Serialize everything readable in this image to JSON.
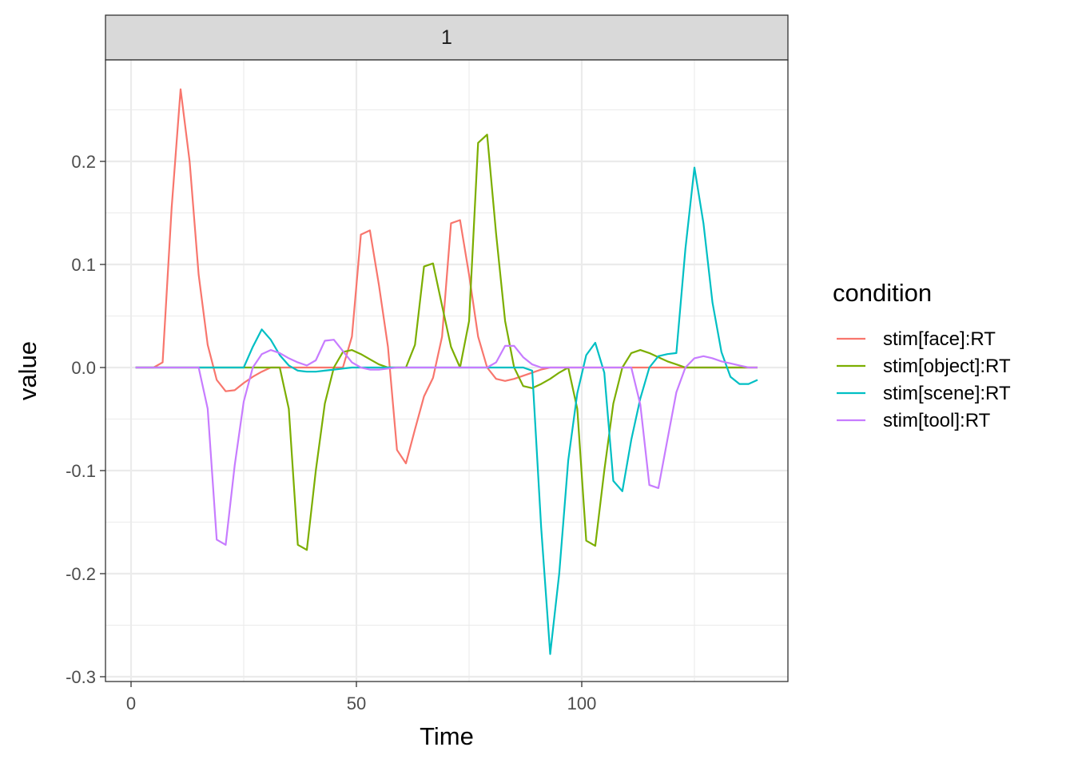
{
  "chart_data": {
    "type": "line",
    "facet_label": "1",
    "xlabel": "Time",
    "ylabel": "value",
    "xlim": [
      -5,
      145
    ],
    "ylim": [
      -0.3,
      0.3
    ],
    "x_ticks": [
      0,
      50,
      100
    ],
    "x_tick_labels": [
      "0",
      "50",
      "100"
    ],
    "y_ticks": [
      -0.3,
      -0.2,
      -0.1,
      0.0,
      0.1,
      0.2
    ],
    "y_tick_labels": [
      "-0.3",
      "-0.2",
      "-0.1",
      "0.0",
      "0.1",
      "0.2"
    ],
    "grid": true,
    "legend": {
      "title": "condition",
      "position": "right"
    },
    "x": [
      1,
      3,
      5,
      7,
      9,
      11,
      13,
      15,
      17,
      19,
      21,
      23,
      25,
      27,
      29,
      31,
      33,
      35,
      37,
      39,
      41,
      43,
      45,
      47,
      49,
      51,
      53,
      55,
      57,
      59,
      61,
      63,
      65,
      67,
      69,
      71,
      73,
      75,
      77,
      79,
      81,
      83,
      85,
      87,
      89,
      91,
      93,
      95,
      97,
      99,
      101,
      103,
      105,
      107,
      109,
      111,
      113,
      115,
      117,
      119,
      121,
      123,
      125,
      127,
      129,
      131,
      133,
      135,
      137,
      139
    ],
    "series": [
      {
        "name": "stim[face]:RT",
        "color": "#F8766D",
        "values": [
          0,
          0,
          0,
          0.005,
          0.155,
          0.27,
          0.2,
          0.09,
          0.022,
          -0.012,
          -0.023,
          -0.022,
          -0.015,
          -0.009,
          -0.004,
          0,
          0,
          0,
          0,
          0,
          0,
          0,
          0,
          0,
          0.03,
          0.129,
          0.133,
          0.08,
          0.02,
          -0.08,
          -0.093,
          -0.06,
          -0.028,
          -0.01,
          0.03,
          0.14,
          0.143,
          0.09,
          0.03,
          0,
          -0.011,
          -0.013,
          -0.011,
          -0.008,
          -0.005,
          -0.002,
          0,
          0,
          0,
          0,
          0,
          0,
          0,
          0,
          0,
          0,
          0,
          0,
          0,
          0,
          0,
          0,
          0,
          0,
          0,
          0,
          0,
          0,
          0,
          0
        ]
      },
      {
        "name": "stim[object]:RT",
        "color": "#7CAE00",
        "values": [
          0,
          0,
          0,
          0,
          0,
          0,
          0,
          0,
          0,
          0,
          0,
          0,
          0,
          0,
          0,
          0,
          0,
          -0.04,
          -0.172,
          -0.177,
          -0.1,
          -0.035,
          0,
          0.015,
          0.017,
          0.013,
          0.008,
          0.003,
          0,
          0,
          0,
          0.022,
          0.098,
          0.101,
          0.06,
          0.02,
          0,
          0.045,
          0.218,
          0.226,
          0.13,
          0.045,
          0,
          -0.018,
          -0.02,
          -0.016,
          -0.011,
          -0.005,
          0,
          -0.04,
          -0.168,
          -0.173,
          -0.1,
          -0.035,
          0,
          0.014,
          0.017,
          0.014,
          0.01,
          0.006,
          0.003,
          0,
          0,
          0,
          0,
          0,
          0,
          0,
          0,
          0
        ]
      },
      {
        "name": "stim[scene]:RT",
        "color": "#00BFC4",
        "values": [
          0,
          0,
          0,
          0,
          0,
          0,
          0,
          0,
          0,
          0,
          0,
          0,
          0,
          0.02,
          0.037,
          0.027,
          0.012,
          0.002,
          -0.003,
          -0.004,
          -0.004,
          -0.003,
          -0.002,
          -0.001,
          0,
          0,
          0,
          0,
          0,
          0,
          0,
          0,
          0,
          0,
          0,
          0,
          0,
          0,
          0,
          0,
          0,
          0,
          0,
          0,
          -0.003,
          -0.155,
          -0.278,
          -0.2,
          -0.09,
          -0.025,
          0.012,
          0.024,
          -0.005,
          -0.11,
          -0.12,
          -0.07,
          -0.03,
          0,
          0.011,
          0.013,
          0.014,
          0.115,
          0.194,
          0.14,
          0.063,
          0.015,
          -0.009,
          -0.016,
          -0.016,
          -0.012
        ]
      },
      {
        "name": "stim[tool]:RT",
        "color": "#C77CFF",
        "values": [
          0,
          0,
          0,
          0,
          0,
          0,
          0,
          0,
          -0.04,
          -0.167,
          -0.172,
          -0.095,
          -0.033,
          0,
          0.013,
          0.017,
          0.014,
          0.009,
          0.005,
          0.002,
          0.007,
          0.026,
          0.027,
          0.016,
          0.005,
          0,
          -0.002,
          -0.002,
          -0.001,
          0,
          0,
          0,
          0,
          0,
          0,
          0,
          0,
          0,
          0,
          0,
          0.005,
          0.021,
          0.021,
          0.01,
          0.003,
          0,
          0,
          0,
          0,
          0,
          0,
          0,
          0,
          0,
          0,
          0,
          -0.036,
          -0.114,
          -0.117,
          -0.07,
          -0.024,
          0,
          0.009,
          0.011,
          0.009,
          0.006,
          0.004,
          0.002,
          0,
          0
        ]
      }
    ]
  }
}
